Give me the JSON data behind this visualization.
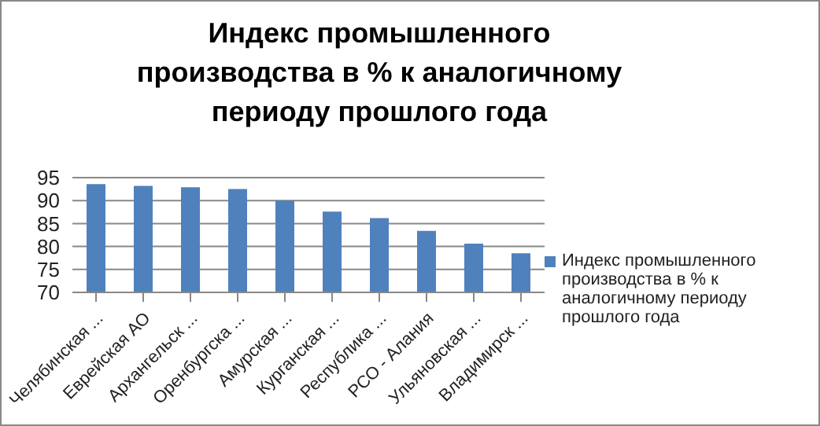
{
  "chart_data": {
    "type": "bar",
    "title": "Индекс промышленного производства в % к аналогичному периоду прошлого года",
    "categories": [
      "Челябинская ...",
      "Еврейская АО",
      "Архангельск ...",
      "Оренбургска ...",
      "Амурская ...",
      "Курганская ...",
      "Республика ...",
      "РСО - Алания",
      "Ульяновская ...",
      "Владимирск ..."
    ],
    "series": [
      {
        "name": "Индекс промышленного производства в % к аналогичному периоду прошлого года",
        "color": "#4f81bd",
        "values": [
          93.6,
          93.2,
          92.9,
          92.5,
          90.0,
          87.6,
          86.2,
          83.4,
          80.6,
          78.5
        ]
      }
    ],
    "ylim": [
      70,
      95
    ],
    "yticks": [
      70,
      75,
      80,
      85,
      90,
      95
    ],
    "grid": "y",
    "legend": "right"
  }
}
